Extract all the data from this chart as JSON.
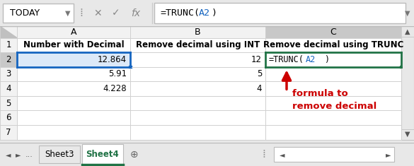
{
  "bg_color": "#e8e8e8",
  "formula_bar_bg": "#ffffff",
  "name_box_text": "TODAY",
  "col_headers": [
    "A",
    "B",
    "C"
  ],
  "cell_data": [
    [
      "Number with Decimal",
      "Remove decimal using INT",
      "Remove decimal using TRUNC"
    ],
    [
      "12.864",
      "12",
      "=TRUNC(A2)"
    ],
    [
      "5.91",
      "5",
      ""
    ],
    [
      "4.228",
      "4",
      ""
    ],
    [
      "",
      "",
      ""
    ],
    [
      "",
      "",
      ""
    ],
    [
      "",
      "",
      ""
    ]
  ],
  "annotation_text": "formula to\nremove decimal",
  "annotation_color": "#cc0000",
  "arrow_color": "#cc0000",
  "grid_color": "#d0d0d0",
  "header_bg": "#f2f2f2",
  "col_c_header_bg": "#c8c8c8",
  "selected_a2_bg": "#dce9f8",
  "active_cell_border": "#217346",
  "selected_border": "#1565c0",
  "formula_blue": "#1565c0"
}
